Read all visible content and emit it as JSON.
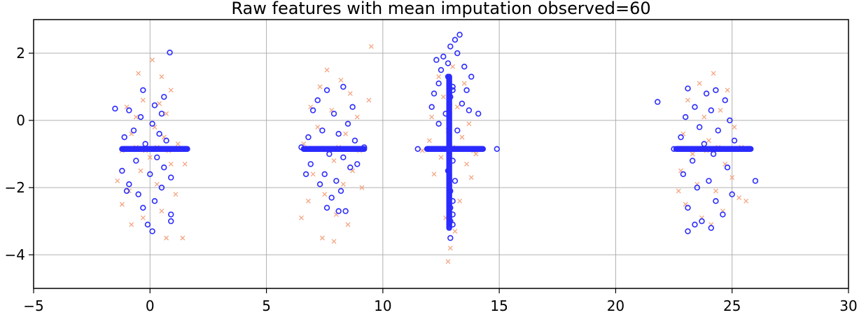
{
  "chart_data": {
    "type": "scatter",
    "title": "Raw features with mean imputation observed=60",
    "xlabel": "",
    "ylabel": "",
    "xlim": [
      -5,
      30
    ],
    "ylim": [
      -5,
      3
    ],
    "xticks": [
      -5,
      0,
      5,
      10,
      15,
      20,
      25,
      30
    ],
    "yticks": [
      -4,
      -2,
      0,
      2
    ],
    "xtick_labels": [
      "−5",
      "0",
      "5",
      "10",
      "15",
      "20",
      "25",
      "30"
    ],
    "ytick_labels": [
      "−4",
      "−2",
      "0",
      "2"
    ],
    "grid": true,
    "imputed_value": -0.85,
    "colors": {
      "observed": "#2b2bff",
      "imputed": "#f4a582",
      "grid": "#b0b0b0"
    },
    "series": [
      {
        "marker": "x",
        "role": "imputed",
        "points": [
          [
            0.1,
            1.8
          ],
          [
            -0.5,
            1.4
          ],
          [
            0.5,
            1.3
          ],
          [
            0.9,
            0.9
          ],
          [
            -0.3,
            0.6
          ],
          [
            0.4,
            0.5
          ],
          [
            -1.0,
            0.4
          ],
          [
            0.7,
            0.2
          ],
          [
            -0.6,
            0.1
          ],
          [
            0.2,
            -0.2
          ],
          [
            -0.8,
            -0.4
          ],
          [
            0.6,
            -0.5
          ],
          [
            1.2,
            -0.7
          ],
          [
            -1.2,
            -0.9
          ],
          [
            0.0,
            -1.1
          ],
          [
            0.9,
            -1.3
          ],
          [
            -0.4,
            -1.5
          ],
          [
            1.5,
            -1.3
          ],
          [
            -1.4,
            -1.8
          ],
          [
            0.3,
            -1.9
          ],
          [
            -0.9,
            -2.1
          ],
          [
            1.1,
            -2.2
          ],
          [
            -1.2,
            -2.5
          ],
          [
            0.5,
            -2.7
          ],
          [
            -0.3,
            -2.9
          ],
          [
            -0.8,
            -3.1
          ],
          [
            0.7,
            -3.5
          ],
          [
            1.4,
            -3.5
          ],
          [
            -0.2,
            -0.9
          ],
          [
            0.3,
            -0.8
          ],
          [
            -0.6,
            -0.8
          ],
          [
            0.8,
            -0.9
          ],
          [
            7.6,
            1.5
          ],
          [
            8.2,
            1.2
          ],
          [
            7.3,
            1.0
          ],
          [
            8.6,
            0.8
          ],
          [
            6.9,
            0.4
          ],
          [
            7.8,
            0.3
          ],
          [
            9.4,
            0.6
          ],
          [
            8.9,
            0.1
          ],
          [
            7.2,
            -0.2
          ],
          [
            8.4,
            -0.4
          ],
          [
            6.6,
            -0.7
          ],
          [
            9.0,
            -0.9
          ],
          [
            7.9,
            -1.2
          ],
          [
            8.7,
            -1.5
          ],
          [
            7.0,
            -1.6
          ],
          [
            8.3,
            -1.9
          ],
          [
            7.5,
            -2.2
          ],
          [
            9.1,
            -2.0
          ],
          [
            6.8,
            -2.4
          ],
          [
            8.0,
            -2.8
          ],
          [
            7.4,
            -3.5
          ],
          [
            7.9,
            -3.6
          ],
          [
            6.5,
            -2.9
          ],
          [
            8.5,
            -3.1
          ],
          [
            9.5,
            2.2
          ],
          [
            7.7,
            -0.9
          ],
          [
            8.1,
            -0.8
          ],
          [
            13.0,
            1.6
          ],
          [
            12.4,
            1.3
          ],
          [
            13.5,
            1.1
          ],
          [
            12.6,
            0.7
          ],
          [
            13.2,
            0.4
          ],
          [
            12.1,
            0.1
          ],
          [
            13.7,
            -0.1
          ],
          [
            12.8,
            -0.3
          ],
          [
            13.4,
            -0.5
          ],
          [
            12.0,
            -0.6
          ],
          [
            13.9,
            -0.9
          ],
          [
            12.5,
            -1.1
          ],
          [
            13.6,
            -1.3
          ],
          [
            12.2,
            -1.6
          ],
          [
            13.8,
            -1.7
          ],
          [
            12.9,
            -2.0
          ],
          [
            13.3,
            -2.4
          ],
          [
            12.7,
            -2.9
          ],
          [
            13.1,
            -3.3
          ],
          [
            12.9,
            -3.8
          ],
          [
            12.8,
            -4.2
          ],
          [
            14.0,
            -1.0
          ],
          [
            11.7,
            -0.9
          ],
          [
            13.0,
            -0.8
          ],
          [
            24.2,
            1.4
          ],
          [
            23.6,
            1.1
          ],
          [
            24.8,
            0.9
          ],
          [
            23.1,
            0.6
          ],
          [
            24.5,
            0.3
          ],
          [
            23.8,
            0.1
          ],
          [
            25.1,
            -0.2
          ],
          [
            22.9,
            -0.4
          ],
          [
            24.0,
            -0.6
          ],
          [
            25.4,
            -0.8
          ],
          [
            23.3,
            -1.0
          ],
          [
            24.7,
            -1.3
          ],
          [
            22.8,
            -1.5
          ],
          [
            25.0,
            -1.7
          ],
          [
            23.5,
            -1.9
          ],
          [
            24.3,
            -2.1
          ],
          [
            25.3,
            -2.3
          ],
          [
            23.0,
            -2.5
          ],
          [
            24.6,
            -2.7
          ],
          [
            23.7,
            -2.9
          ],
          [
            24.1,
            -3.1
          ],
          [
            25.6,
            -2.4
          ],
          [
            22.7,
            -2.1
          ],
          [
            24.4,
            -0.8
          ],
          [
            23.9,
            -0.9
          ]
        ]
      },
      {
        "marker": "o",
        "role": "observed",
        "points": [
          [
            0.85,
            2.02
          ],
          [
            -0.3,
            0.9
          ],
          [
            0.6,
            0.7
          ],
          [
            -1.5,
            0.35
          ],
          [
            0.2,
            0.45
          ],
          [
            -0.9,
            0.3
          ],
          [
            0.5,
            0.2
          ],
          [
            -0.4,
            0.1
          ],
          [
            0.1,
            -0.1
          ],
          [
            -0.7,
            -0.3
          ],
          [
            0.4,
            -0.4
          ],
          [
            -1.1,
            -0.5
          ],
          [
            0.7,
            -0.6
          ],
          [
            -0.2,
            -0.7
          ],
          [
            0.3,
            -1.1
          ],
          [
            -0.6,
            -1.2
          ],
          [
            0.6,
            -1.4
          ],
          [
            -1.2,
            -1.5
          ],
          [
            0.0,
            -1.6
          ],
          [
            -0.9,
            -1.9
          ],
          [
            0.5,
            -2.0
          ],
          [
            -0.5,
            -2.2
          ],
          [
            0.9,
            -1.7
          ],
          [
            -1.0,
            -2.1
          ],
          [
            0.2,
            -2.4
          ],
          [
            -0.3,
            -2.6
          ],
          [
            0.9,
            -2.8
          ],
          [
            -0.1,
            -3.1
          ],
          [
            0.1,
            -3.3
          ],
          [
            0.9,
            -3.0
          ],
          [
            7.6,
            0.9
          ],
          [
            8.3,
            1.0
          ],
          [
            7.2,
            0.6
          ],
          [
            8.7,
            0.4
          ],
          [
            7.0,
            0.3
          ],
          [
            7.9,
            0.2
          ],
          [
            8.5,
            -0.1
          ],
          [
            7.4,
            -0.3
          ],
          [
            8.1,
            -0.4
          ],
          [
            6.8,
            -0.5
          ],
          [
            8.8,
            -0.6
          ],
          [
            7.7,
            -1.0
          ],
          [
            8.3,
            -1.1
          ],
          [
            6.9,
            -1.3
          ],
          [
            8.6,
            -1.4
          ],
          [
            7.5,
            -1.6
          ],
          [
            8.0,
            -1.8
          ],
          [
            6.7,
            -1.6
          ],
          [
            8.9,
            -1.3
          ],
          [
            7.3,
            -1.9
          ],
          [
            8.2,
            -2.1
          ],
          [
            7.8,
            -2.3
          ],
          [
            7.6,
            -2.6
          ],
          [
            8.1,
            -2.7
          ],
          [
            8.4,
            -2.7
          ],
          [
            9.2,
            -0.8
          ],
          [
            6.5,
            -0.8
          ],
          [
            13.3,
            2.55
          ],
          [
            13.1,
            2.4
          ],
          [
            12.9,
            2.2
          ],
          [
            13.2,
            2.0
          ],
          [
            12.6,
            1.9
          ],
          [
            12.3,
            1.8
          ],
          [
            12.5,
            1.5
          ],
          [
            13.5,
            1.6
          ],
          [
            12.8,
            1.3
          ],
          [
            13.8,
            1.3
          ],
          [
            12.4,
            1.1
          ],
          [
            13.0,
            1.0
          ],
          [
            13.6,
            0.9
          ],
          [
            12.2,
            0.8
          ],
          [
            12.9,
            0.7
          ],
          [
            13.4,
            0.5
          ],
          [
            12.1,
            0.4
          ],
          [
            13.7,
            0.3
          ],
          [
            12.7,
            0.2
          ],
          [
            14.1,
            0.2
          ],
          [
            12.4,
            -0.1
          ],
          [
            13.2,
            -0.3
          ],
          [
            11.5,
            -0.85
          ],
          [
            14.9,
            -0.85
          ],
          [
            13.0,
            -1.2
          ],
          [
            12.8,
            -1.5
          ],
          [
            13.1,
            -1.8
          ],
          [
            12.9,
            -2.1
          ],
          [
            13.0,
            -2.4
          ],
          [
            12.9,
            -2.6
          ],
          [
            13.0,
            -2.8
          ],
          [
            12.9,
            -3.0
          ],
          [
            13.0,
            -3.1
          ],
          [
            12.9,
            -3.5
          ],
          [
            12.8,
            1.7
          ],
          [
            13.0,
            0.9
          ],
          [
            21.8,
            0.55
          ],
          [
            23.1,
            0.95
          ],
          [
            24.3,
            0.9
          ],
          [
            23.9,
            0.8
          ],
          [
            24.7,
            0.6
          ],
          [
            23.4,
            0.4
          ],
          [
            24.1,
            0.3
          ],
          [
            23.0,
            0.1
          ],
          [
            24.9,
            0.0
          ],
          [
            23.6,
            -0.2
          ],
          [
            24.4,
            -0.3
          ],
          [
            22.8,
            -0.5
          ],
          [
            25.1,
            -0.6
          ],
          [
            23.8,
            -0.7
          ],
          [
            24.2,
            -1.0
          ],
          [
            23.3,
            -1.2
          ],
          [
            24.8,
            -1.4
          ],
          [
            22.9,
            -1.6
          ],
          [
            24.0,
            -1.8
          ],
          [
            23.5,
            -2.0
          ],
          [
            25.0,
            -2.2
          ],
          [
            24.3,
            -2.4
          ],
          [
            23.1,
            -2.6
          ],
          [
            24.6,
            -2.8
          ],
          [
            23.7,
            -3.0
          ],
          [
            24.1,
            -3.2
          ],
          [
            23.4,
            -3.1
          ],
          [
            23.1,
            -3.3
          ],
          [
            26.0,
            -1.8
          ],
          [
            25.7,
            -0.85
          ],
          [
            22.5,
            -0.85
          ]
        ]
      }
    ]
  }
}
